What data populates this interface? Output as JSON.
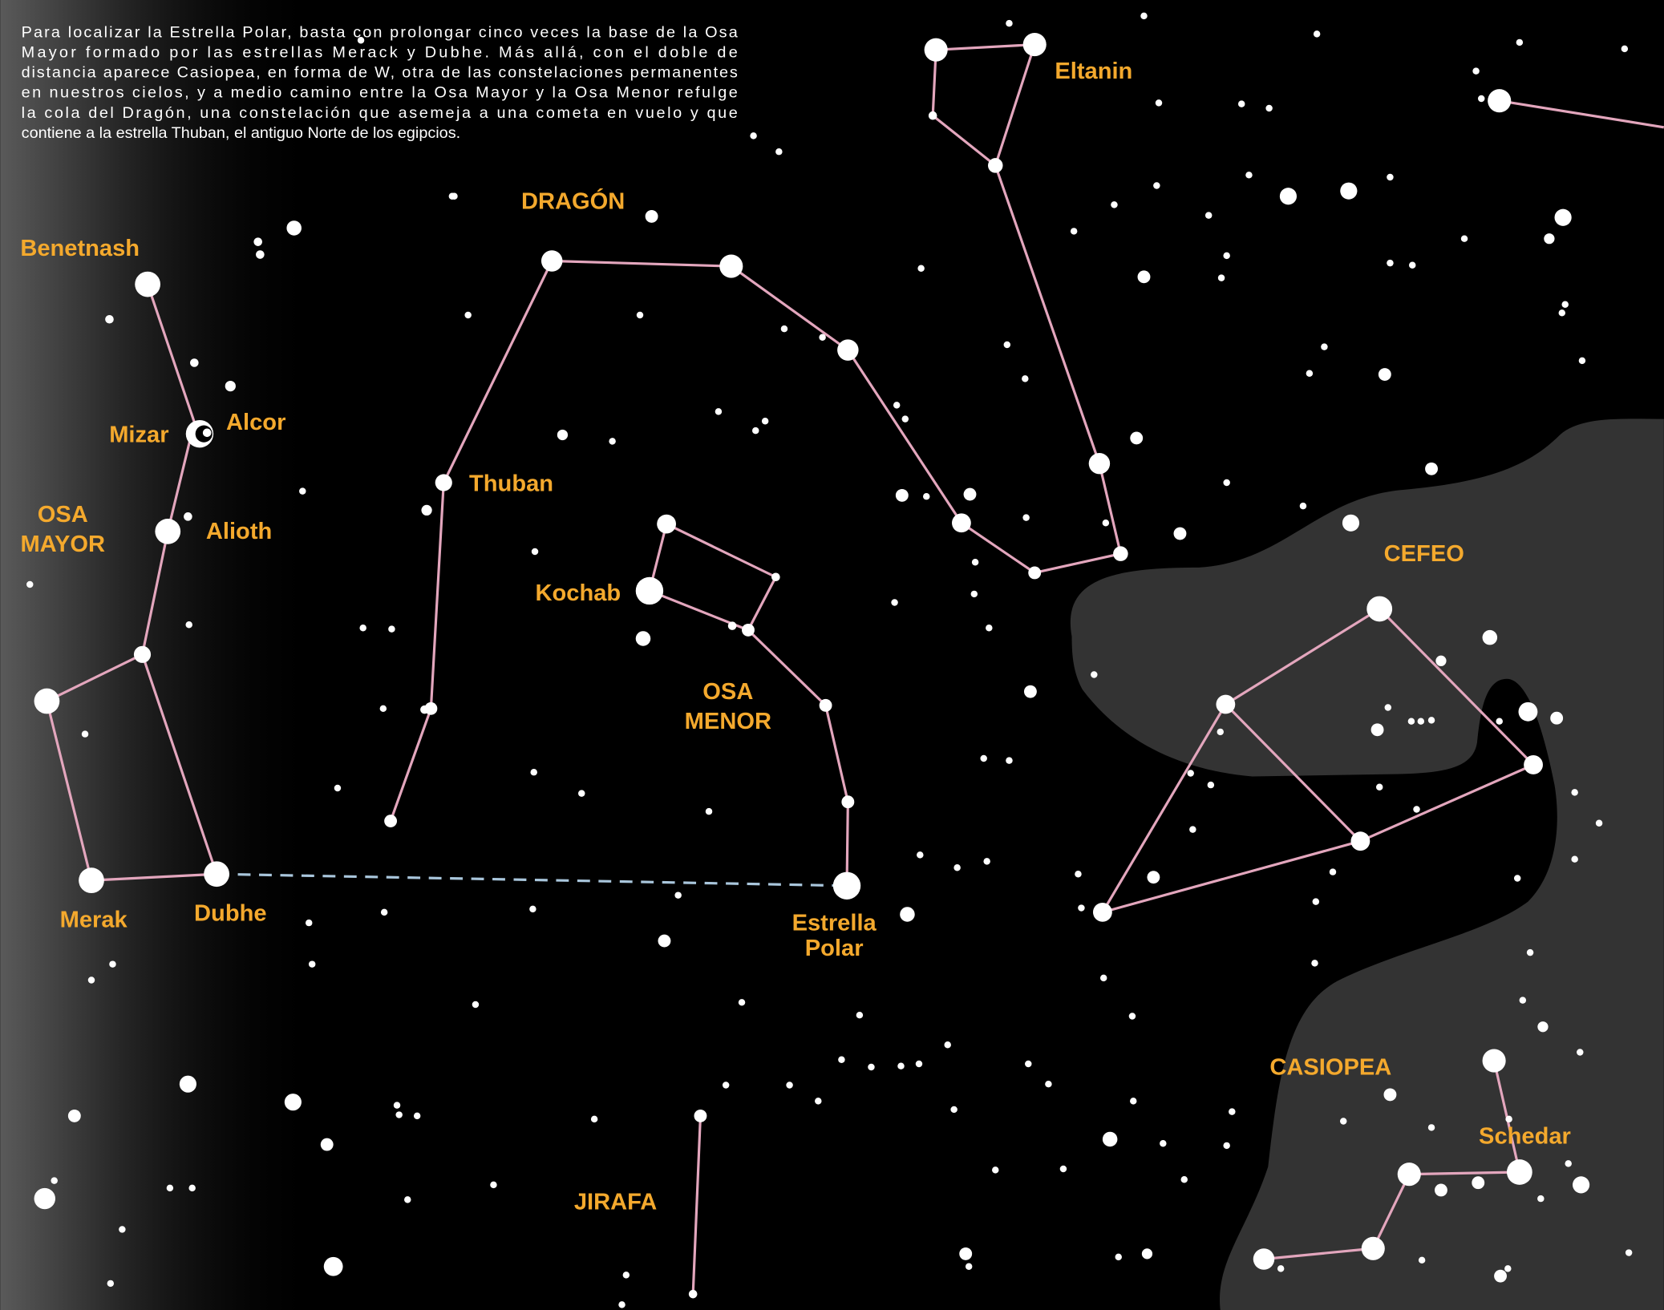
{
  "intro": [
    "Para localizar la Estrella Polar, basta con prolongar cinco veces la base de la Osa",
    "Mayor formado por las estrellas Merack y Dubhe. Más allá, con el doble de",
    "distancia aparece Casiopea, en forma de W, otra de las constelaciones permanentes",
    "en nuestros cielos, y a medio camino entre la Osa Mayor y la Osa Menor refulge",
    "la cola del Dragón, una constelación que asemeja a una cometa en vuelo y que",
    "contiene a la estrella Thuban, el antiguo Norte de los egipcios."
  ],
  "labels": {
    "benetnash": "Benetnash",
    "mizar": "Mizar",
    "alcor": "Alcor",
    "osa_mayor": [
      "OSA",
      "MAYOR"
    ],
    "alioth": "Alioth",
    "merak": "Merak",
    "dubhe": "Dubhe",
    "dragon": "DRAGÓN",
    "thuban": "Thuban",
    "kochab": "Kochab",
    "osa_menor": [
      "OSA",
      "MENOR"
    ],
    "estrella_polar": [
      "Estrella",
      "Polar"
    ],
    "eltanin": "Eltanin",
    "cefeo": "CEFEO",
    "casiopea": "CASIOPEA",
    "schedar": "Schedar",
    "jirafa": "JIRAFA"
  }
}
